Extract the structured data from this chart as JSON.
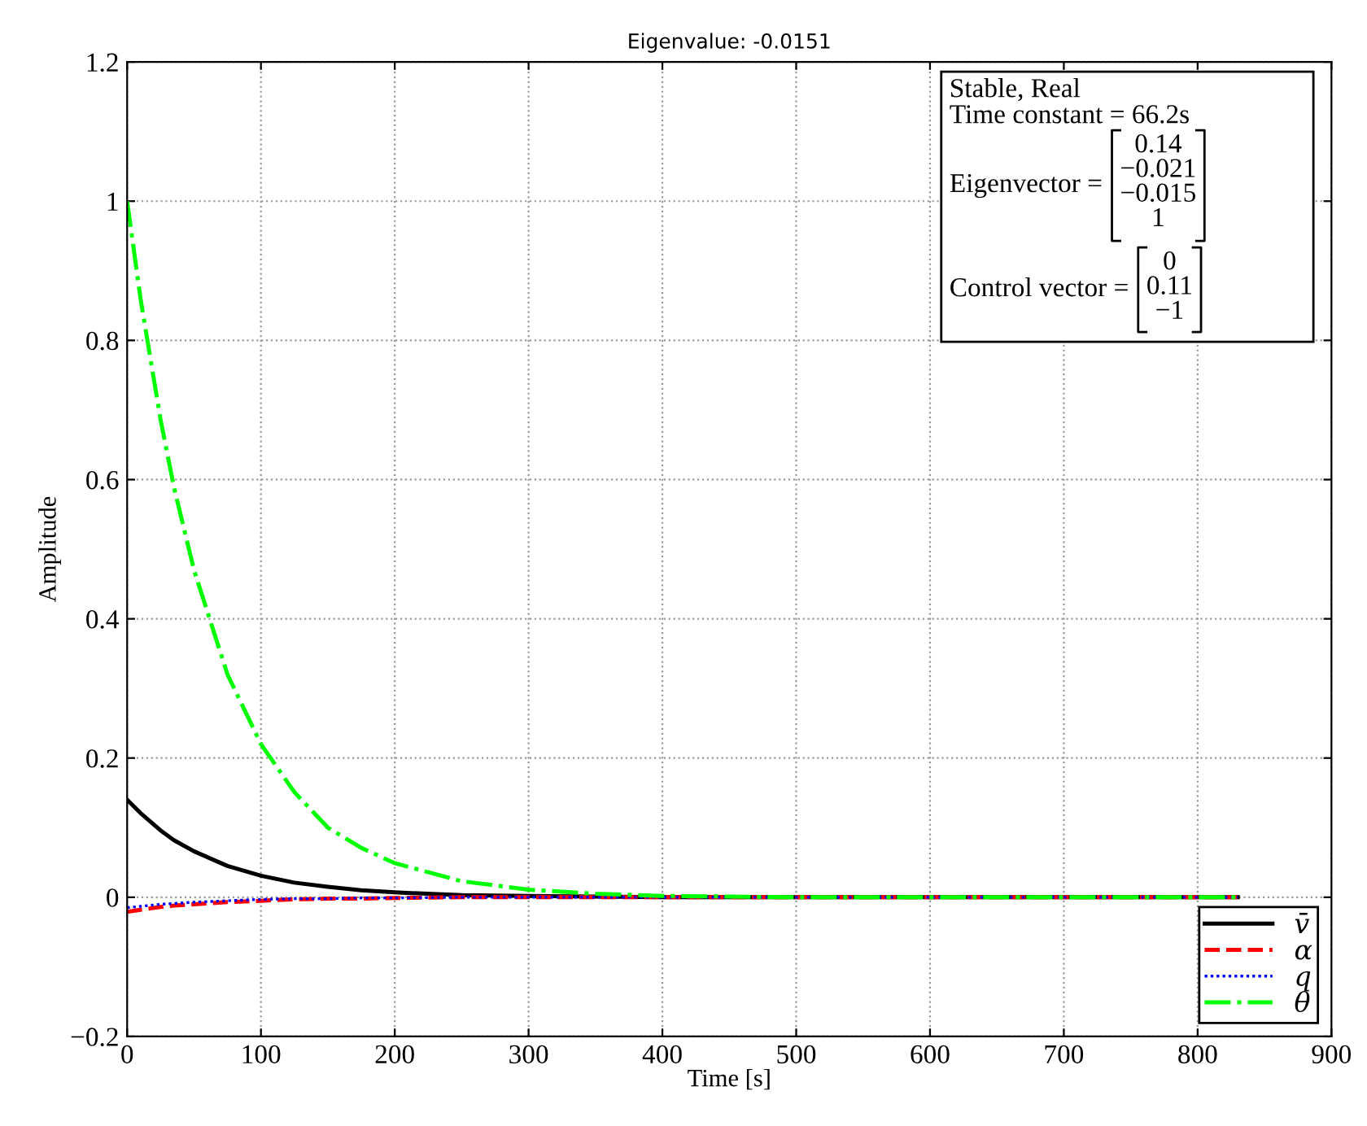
{
  "chart_data": {
    "type": "line",
    "title": "Eigenvalue: -0.0151",
    "xlabel": "Time [s]",
    "ylabel": "Amplitude",
    "x": [
      0,
      10,
      25,
      35,
      50,
      75,
      100,
      125,
      150,
      175,
      200,
      250,
      300,
      350,
      400,
      500,
      600,
      700,
      830
    ],
    "series": [
      {
        "name": "v̄",
        "color": "#000000",
        "line_style": "solid",
        "values": [
          0.14,
          0.121,
          0.096,
          0.082,
          0.066,
          0.045,
          0.031,
          0.021,
          0.015,
          0.01,
          0.007,
          0.003,
          0.002,
          0.001,
          0,
          0,
          0,
          0,
          0
        ]
      },
      {
        "name": "α",
        "color": "#ff0000",
        "line_style": "dashed",
        "values": [
          -0.021,
          -0.018,
          -0.014,
          -0.012,
          -0.01,
          -0.007,
          -0.005,
          -0.003,
          -0.002,
          -0.002,
          -0.001,
          0,
          0,
          0,
          0,
          0,
          0,
          0,
          0
        ]
      },
      {
        "name": "q",
        "color": "#0000ff",
        "line_style": "dotted",
        "values": [
          -0.015,
          -0.013,
          -0.01,
          -0.009,
          -0.007,
          -0.005,
          -0.003,
          -0.002,
          -0.002,
          -0.001,
          -0.001,
          0,
          0,
          0,
          0,
          0,
          0,
          0,
          0
        ]
      },
      {
        "name": "θ",
        "color": "#00ff00",
        "line_style": "dashdot",
        "values": [
          1,
          0.86,
          0.686,
          0.589,
          0.47,
          0.32,
          0.22,
          0.151,
          0.1,
          0.071,
          0.049,
          0.023,
          0.011,
          0.005,
          0.002,
          0,
          0,
          0,
          0
        ]
      }
    ],
    "xlim": [
      0,
      900
    ],
    "xticks": [
      0,
      100,
      200,
      300,
      400,
      500,
      600,
      700,
      800,
      900
    ],
    "ylim": [
      -0.2,
      1.2
    ],
    "yticks": [
      {
        "value": -0.2,
        "label": "−0.2"
      },
      0,
      0.2,
      0.4,
      0.6,
      0.8,
      1,
      1.2
    ],
    "grid": true,
    "legend": "bottom right",
    "annotations": [
      "Stable, Real",
      "Time constant = 66.2s",
      "Eigenvector =",
      "0.14\n−0.021\n−0.015\n1",
      "Control vector =",
      "0\n0.11\n−1"
    ]
  }
}
